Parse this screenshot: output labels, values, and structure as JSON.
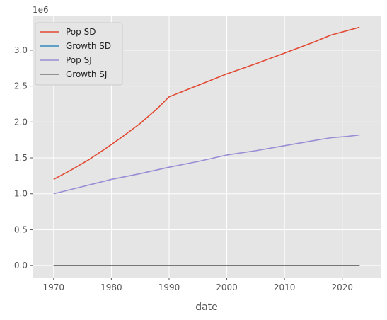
{
  "chart_data": {
    "type": "line",
    "xlabel": "date",
    "offset_text": "1e6",
    "grid": true,
    "legend_position": "top-left",
    "xlim": [
      1966.35,
      2026.65
    ],
    "ylim": [
      -0.166,
      3.482
    ],
    "x_ticks": [
      1970,
      1980,
      1990,
      2000,
      2010,
      2020
    ],
    "x_tick_labels": [
      "1970",
      "1980",
      "1990",
      "2000",
      "2010",
      "2020"
    ],
    "y_ticks": [
      0.0,
      0.5,
      1.0,
      1.5,
      2.0,
      2.5,
      3.0
    ],
    "y_tick_labels": [
      "0.0",
      "0.5",
      "1.0",
      "1.5",
      "2.0",
      "2.5",
      "3.0"
    ],
    "series": [
      {
        "name": "Pop SD",
        "color": "#E24A33",
        "x": [
          1970,
          1973,
          1976,
          1979,
          1982,
          1985,
          1988,
          1990,
          1995,
          2000,
          2005,
          2010,
          2015,
          2018,
          2023
        ],
        "y": [
          1.2,
          1.33,
          1.47,
          1.63,
          1.8,
          1.98,
          2.19,
          2.35,
          2.51,
          2.67,
          2.81,
          2.96,
          3.11,
          3.21,
          3.32
        ]
      },
      {
        "name": "Growth SD",
        "color": "#348ABD",
        "x": [
          1970,
          2023
        ],
        "y": [
          0.0,
          0.0
        ]
      },
      {
        "name": "Pop SJ",
        "color": "#988ED5",
        "x": [
          1970,
          1975,
          1980,
          1985,
          1990,
          1995,
          2000,
          2005,
          2010,
          2015,
          2018,
          2021,
          2023
        ],
        "y": [
          1.0,
          1.1,
          1.2,
          1.28,
          1.37,
          1.45,
          1.54,
          1.6,
          1.67,
          1.74,
          1.78,
          1.8,
          1.82
        ]
      },
      {
        "name": "Growth SJ",
        "color": "#777777",
        "x": [
          1970,
          2023
        ],
        "y": [
          0.0,
          0.0
        ]
      }
    ]
  }
}
